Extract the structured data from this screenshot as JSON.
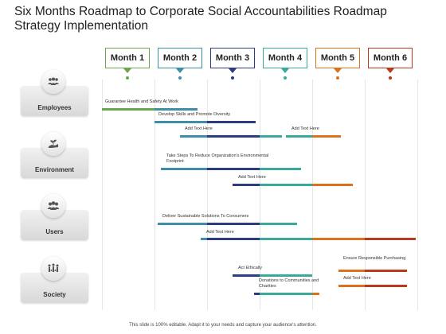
{
  "slide": {
    "title": "Six Months Roadmap to Corporate Social Accountabilities Roadmap Strategy Implementation",
    "footer": "This slide is 100% editable. Adapt it to your needs and capture your audience's attention."
  },
  "months": [
    {
      "label": "Month 1",
      "color": "#6aa84f"
    },
    {
      "label": "Month 2",
      "color": "#3d8ea8"
    },
    {
      "label": "Month 3",
      "color": "#2e3a82"
    },
    {
      "label": "Month 4",
      "color": "#3aa99a"
    },
    {
      "label": "Month 5",
      "color": "#d9711f"
    },
    {
      "label": "Month 6",
      "color": "#b73a1f"
    }
  ],
  "categories": [
    {
      "label": "Employees",
      "icon": "group-people-icon"
    },
    {
      "label": "Environment",
      "icon": "hand-plant-icon"
    },
    {
      "label": "Users",
      "icon": "users-icon"
    },
    {
      "label": "Society",
      "icon": "society-people-icon"
    }
  ],
  "tasks": {
    "t1": "Guarantee Health and Safety At Work",
    "t2": "Develop Skills and Promote Diversity",
    "t3": "Add Text Here",
    "t4": "Add Text Here",
    "t5": "Take Steps To Reduce Organization's Environmental Footprint",
    "t6": "Add Text Here",
    "t7": "Deliver Sustainable Solutions To Consumers",
    "t8": "Add Text Here",
    "t9": "Act Ethically",
    "t10": "Donations to Communities and Charities",
    "t11": "Ensure Responsible Purchasing",
    "t12": "Add Text Here"
  }
}
